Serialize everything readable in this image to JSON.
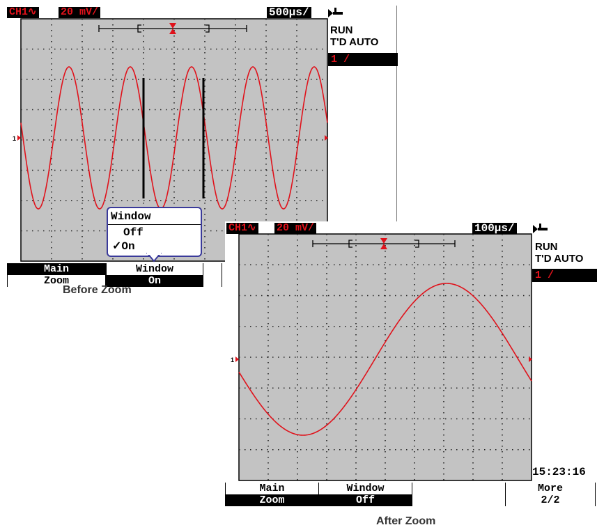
{
  "before": {
    "ch_label": "CH1∿",
    "volts_div": "20 mV/",
    "timebase": "500µs/",
    "status": "RUN",
    "trigger_mode": "T'D AUTO",
    "trigger_channel": "1 /",
    "ch_marker": "1",
    "popup": {
      "title": "Window",
      "options": [
        "Off",
        "On"
      ],
      "selected": "On"
    },
    "softkeys": [
      {
        "top": "Main",
        "bottom": "Zoom"
      },
      {
        "top": "Window",
        "bottom": "On"
      }
    ],
    "caption": "Before Zoom"
  },
  "after": {
    "ch_label": "CH1∿",
    "volts_div": "20 mV/",
    "timebase": "100µs/",
    "status": "RUN",
    "trigger_mode": "T'D AUTO",
    "trigger_channel": "1 /",
    "ch_marker": "1",
    "clock": "15:23:16",
    "softkeys": [
      {
        "top": "Main",
        "bottom": "Zoom"
      },
      {
        "top": "Window",
        "bottom": "Off"
      },
      {
        "top": "",
        "bottom": ""
      },
      {
        "top": "More",
        "bottom": "2/2"
      }
    ],
    "caption": "After Zoom"
  },
  "colors": {
    "trace": "#e0121b",
    "grid_bg": "#c3c3c3",
    "popup_border": "#3a3a9a"
  },
  "icons": [
    "trigger-slope-icon",
    "connector-icon",
    "trigger-position-icon",
    "channel-ground-icon"
  ]
}
